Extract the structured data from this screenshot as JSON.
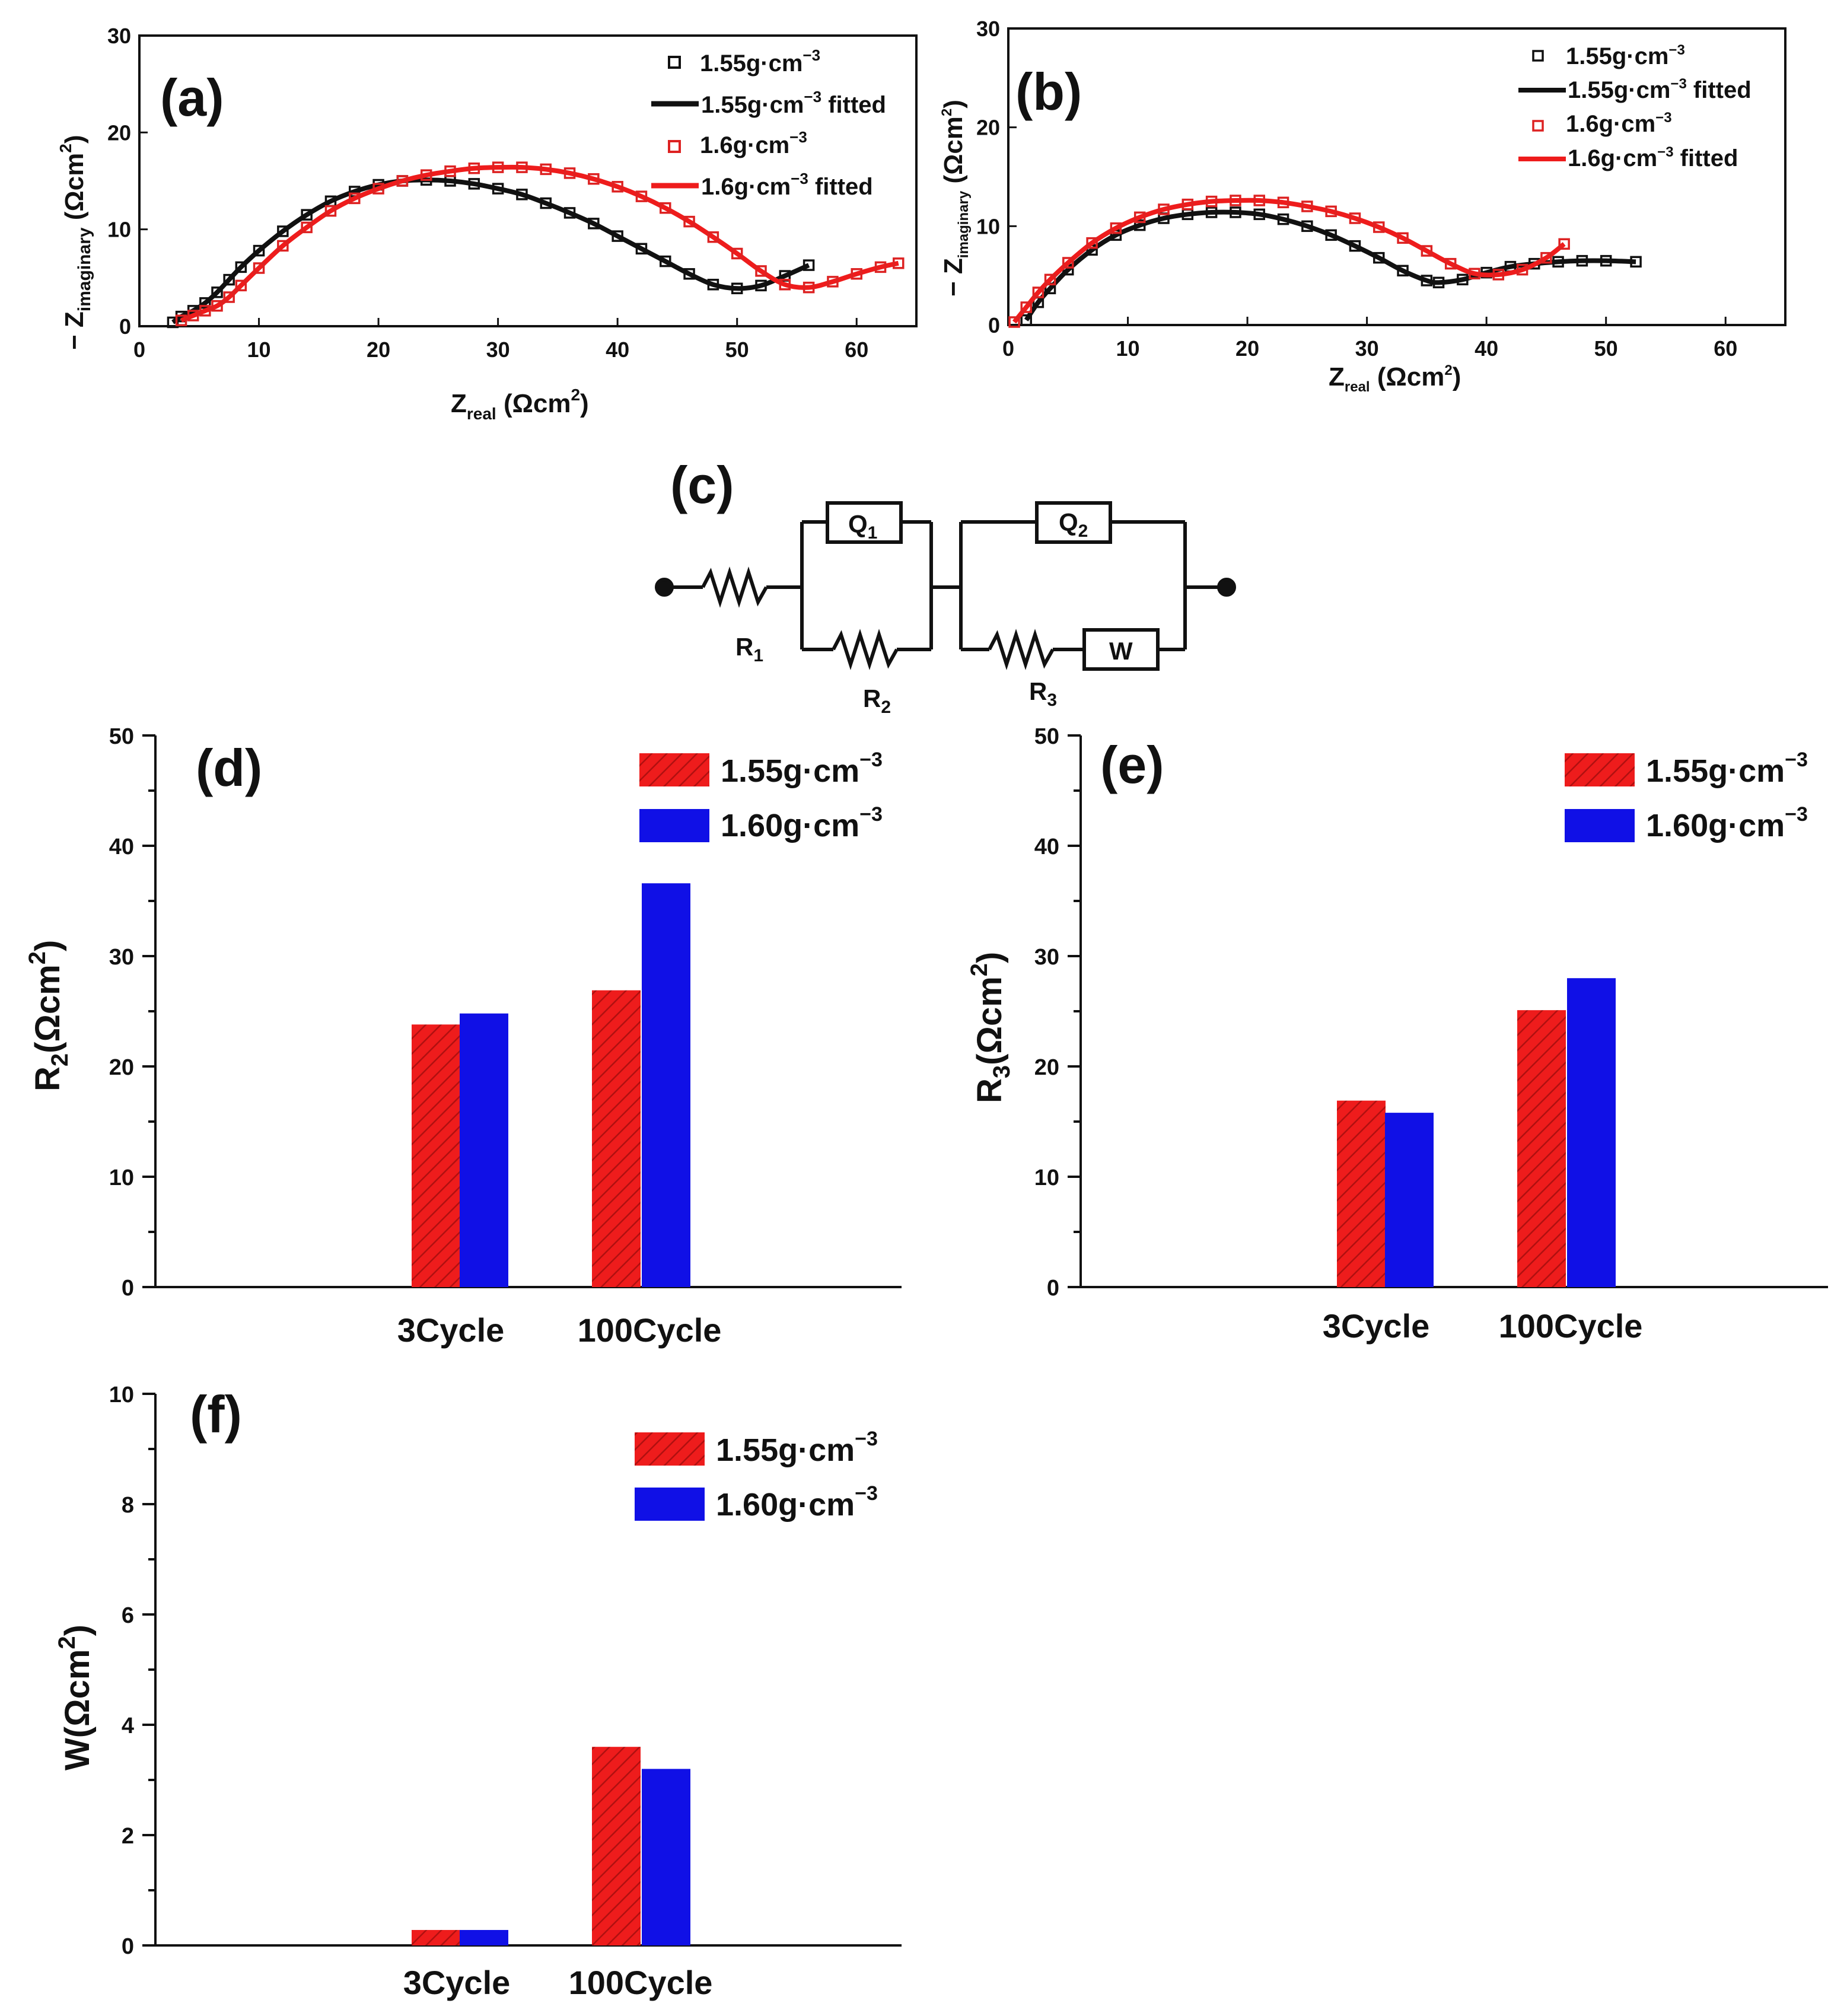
{
  "chart_data": [
    {
      "id": "a",
      "type": "scatter",
      "panel_label": "(a)",
      "xlabel_main": "Z",
      "xlabel_sub": "real",
      "xlabel_unit": " (Ωcm",
      "ylabel_main": "− Z",
      "ylabel_sub": "imaginary",
      "ylabel_unit": " (Ωcm",
      "unit_sup": "2",
      "xlim": [
        0,
        65
      ],
      "ylim": [
        0,
        30
      ],
      "xticks": [
        "0",
        "10",
        "20",
        "30",
        "40",
        "50",
        "60"
      ],
      "yticks": [
        "0",
        "10",
        "20",
        "30"
      ],
      "legend": [
        "1.55g·cm",
        "1.55g·cm",
        "1.6g·cm",
        "1.6g·cm"
      ],
      "legend_sup": "−3",
      "legend_suffix": " fitted",
      "series": [
        {
          "name": "1.55g·cm⁻³",
          "color": "#111111",
          "points": [
            [
              2.8,
              0.4
            ],
            [
              3.5,
              1.0
            ],
            [
              4.5,
              1.6
            ],
            [
              5.5,
              2.4
            ],
            [
              6.5,
              3.5
            ],
            [
              7.5,
              4.8
            ],
            [
              8.5,
              6.1
            ],
            [
              10,
              7.8
            ],
            [
              12,
              9.8
            ],
            [
              14,
              11.5
            ],
            [
              16,
              12.9
            ],
            [
              18,
              13.9
            ],
            [
              20,
              14.6
            ],
            [
              22,
              15.0
            ],
            [
              24,
              15.1
            ],
            [
              26,
              15.0
            ],
            [
              28,
              14.7
            ],
            [
              30,
              14.2
            ],
            [
              32,
              13.6
            ],
            [
              34,
              12.7
            ],
            [
              36,
              11.7
            ],
            [
              38,
              10.6
            ],
            [
              40,
              9.3
            ],
            [
              42,
              8.0
            ],
            [
              44,
              6.7
            ],
            [
              46,
              5.4
            ],
            [
              48,
              4.3
            ],
            [
              50,
              3.9
            ],
            [
              52,
              4.2
            ],
            [
              54,
              5.2
            ],
            [
              56,
              6.3
            ]
          ]
        },
        {
          "name": "1.6g·cm⁻³",
          "color": "#dd2222",
          "points": [
            [
              3.5,
              0.6
            ],
            [
              4.5,
              1.1
            ],
            [
              5.5,
              1.6
            ],
            [
              6.5,
              2.1
            ],
            [
              7.5,
              3.0
            ],
            [
              8.5,
              4.2
            ],
            [
              10,
              6.0
            ],
            [
              12,
              8.3
            ],
            [
              14,
              10.2
            ],
            [
              16,
              11.9
            ],
            [
              18,
              13.2
            ],
            [
              20,
              14.2
            ],
            [
              22,
              15.0
            ],
            [
              24,
              15.6
            ],
            [
              26,
              16.0
            ],
            [
              28,
              16.3
            ],
            [
              30,
              16.4
            ],
            [
              32,
              16.4
            ],
            [
              34,
              16.2
            ],
            [
              36,
              15.8
            ],
            [
              38,
              15.2
            ],
            [
              40,
              14.4
            ],
            [
              42,
              13.4
            ],
            [
              44,
              12.2
            ],
            [
              46,
              10.8
            ],
            [
              48,
              9.2
            ],
            [
              50,
              7.5
            ],
            [
              52,
              5.7
            ],
            [
              54,
              4.3
            ],
            [
              56,
              4.0
            ],
            [
              58,
              4.6
            ],
            [
              60,
              5.4
            ],
            [
              62,
              6.1
            ],
            [
              63.5,
              6.5
            ]
          ]
        }
      ]
    },
    {
      "id": "b",
      "type": "scatter",
      "panel_label": "(b)",
      "xlabel_main": "Z",
      "xlabel_sub": "real",
      "xlabel_unit": " (Ωcm",
      "ylabel_main": "− Z",
      "ylabel_sub": "imaginary",
      "ylabel_unit": " (Ωcm",
      "unit_sup": "2",
      "xlim": [
        0,
        65
      ],
      "ylim": [
        0,
        30
      ],
      "xticks": [
        "0",
        "10",
        "20",
        "30",
        "40",
        "50",
        "60"
      ],
      "yticks": [
        "0",
        "10",
        "20",
        "30"
      ],
      "legend": [
        "1.55g·cm",
        "1.55g·cm",
        "1.6g·cm",
        "1.6g·cm"
      ],
      "legend_sup": "−3",
      "legend_suffix": " fitted",
      "series": [
        {
          "name": "1.55g·cm⁻³",
          "color": "#111111",
          "points": [
            [
              1.5,
              0.5
            ],
            [
              2.5,
              2.3
            ],
            [
              3.5,
              3.7
            ],
            [
              5,
              5.6
            ],
            [
              7,
              7.6
            ],
            [
              9,
              9.1
            ],
            [
              11,
              10.1
            ],
            [
              13,
              10.8
            ],
            [
              15,
              11.2
            ],
            [
              17,
              11.4
            ],
            [
              19,
              11.4
            ],
            [
              21,
              11.2
            ],
            [
              23,
              10.7
            ],
            [
              25,
              10.0
            ],
            [
              27,
              9.1
            ],
            [
              29,
              8.0
            ],
            [
              31,
              6.8
            ],
            [
              33,
              5.5
            ],
            [
              35,
              4.5
            ],
            [
              36,
              4.3
            ],
            [
              38,
              4.6
            ],
            [
              40,
              5.3
            ],
            [
              42,
              5.9
            ],
            [
              44,
              6.2
            ],
            [
              46,
              6.4
            ],
            [
              48,
              6.5
            ],
            [
              50,
              6.5
            ],
            [
              52.5,
              6.4
            ]
          ]
        },
        {
          "name": "1.6g·cm⁻³",
          "color": "#dd2222",
          "points": [
            [
              0.5,
              0.3
            ],
            [
              1.5,
              1.8
            ],
            [
              2.5,
              3.3
            ],
            [
              3.5,
              4.6
            ],
            [
              5,
              6.3
            ],
            [
              7,
              8.3
            ],
            [
              9,
              9.8
            ],
            [
              11,
              10.9
            ],
            [
              13,
              11.7
            ],
            [
              15,
              12.2
            ],
            [
              17,
              12.5
            ],
            [
              19,
              12.6
            ],
            [
              21,
              12.6
            ],
            [
              23,
              12.4
            ],
            [
              25,
              12.0
            ],
            [
              27,
              11.5
            ],
            [
              29,
              10.8
            ],
            [
              31,
              9.9
            ],
            [
              33,
              8.8
            ],
            [
              35,
              7.5
            ],
            [
              37,
              6.2
            ],
            [
              39,
              5.2
            ],
            [
              41,
              5.1
            ],
            [
              43,
              5.6
            ],
            [
              45,
              6.8
            ],
            [
              46.5,
              8.2
            ]
          ]
        }
      ]
    },
    {
      "id": "d",
      "type": "bar",
      "panel_label": "(d)",
      "ylabel_main": "R",
      "ylabel_sub": "2",
      "ylabel_unit": "(Ωcm",
      "unit_sup": "2",
      "categories": [
        "3Cycle",
        "100Cycle"
      ],
      "ylim": [
        0,
        50
      ],
      "yticks": [
        "0",
        "10",
        "20",
        "30",
        "40",
        "50"
      ],
      "series": [
        {
          "name": "1.55g·cm",
          "values": [
            23.8,
            26.9
          ]
        },
        {
          "name": "1.60g·cm",
          "values": [
            24.8,
            36.6
          ]
        }
      ],
      "legend_sup": "−3"
    },
    {
      "id": "e",
      "type": "bar",
      "panel_label": "(e)",
      "ylabel_main": "R",
      "ylabel_sub": "3",
      "ylabel_unit": "(Ωcm",
      "unit_sup": "2",
      "categories": [
        "3Cycle",
        "100Cycle"
      ],
      "ylim": [
        0,
        50
      ],
      "yticks": [
        "0",
        "10",
        "20",
        "30",
        "40",
        "50"
      ],
      "series": [
        {
          "name": "1.55g·cm",
          "values": [
            16.9,
            25.1
          ]
        },
        {
          "name": "1.60g·cm",
          "values": [
            15.8,
            28.0
          ]
        }
      ],
      "legend_sup": "−3"
    },
    {
      "id": "f",
      "type": "bar",
      "panel_label": "(f)",
      "ylabel_main": "W",
      "ylabel_sub": "",
      "ylabel_unit": "(Ωcm",
      "unit_sup": "2",
      "categories": [
        "3Cycle",
        "100Cycle"
      ],
      "ylim": [
        0,
        10
      ],
      "yticks": [
        "0",
        "2",
        "4",
        "6",
        "8",
        "10"
      ],
      "series": [
        {
          "name": "1.55g·cm",
          "values": [
            0.28,
            3.6
          ]
        },
        {
          "name": "1.60g·cm",
          "values": [
            0.28,
            3.2
          ]
        }
      ],
      "legend_sup": "−3"
    }
  ],
  "circuit": {
    "panel_label": "(c)",
    "r1": "R",
    "r1_sub": "1",
    "r2": "R",
    "r2_sub": "2",
    "r3": "R",
    "r3_sub": "3",
    "q1": "Q",
    "q1_sub": "1",
    "q2": "Q",
    "q2_sub": "2",
    "w": "W"
  },
  "colors": {
    "red": "#ee1c1c",
    "blue": "#1010e6",
    "black": "#111111",
    "fit_red": "#ee1c1c"
  }
}
